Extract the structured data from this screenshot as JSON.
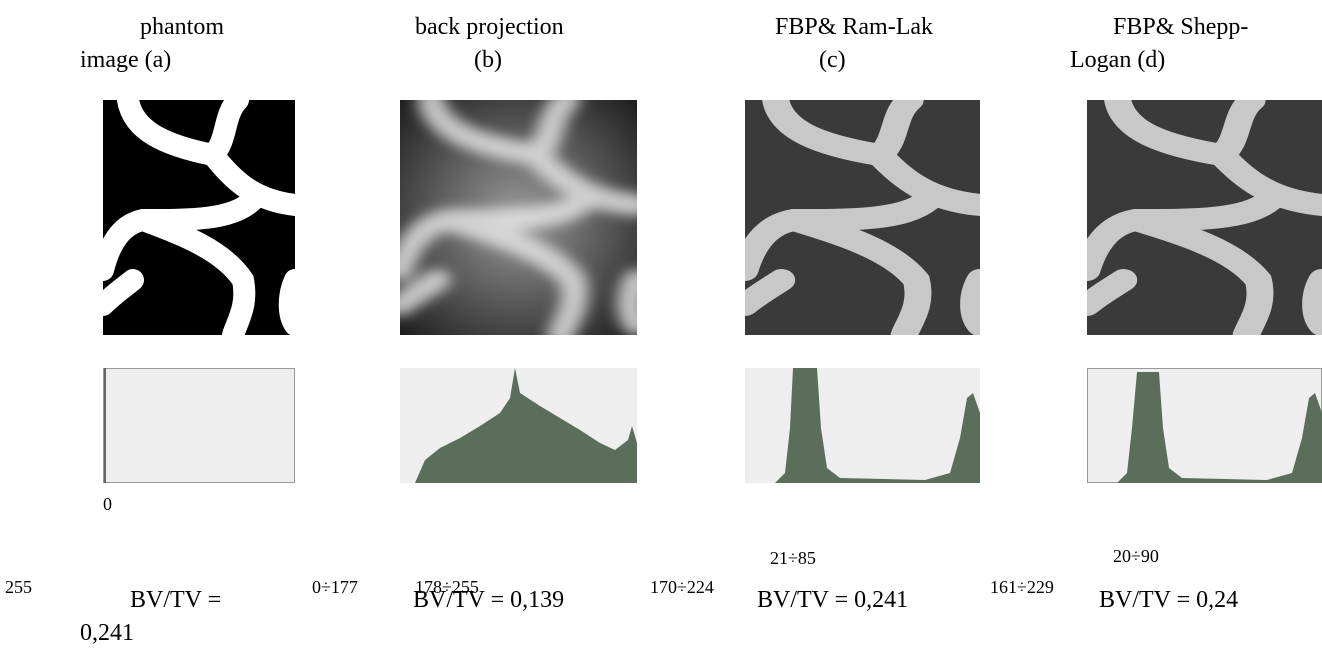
{
  "columns": [
    {
      "title": [
        "phantom",
        "image (a)"
      ],
      "ranges": [
        "0",
        "255"
      ],
      "bvtv": [
        "BV/TV =",
        "0,241"
      ]
    },
    {
      "title": [
        "back projection",
        "(b)"
      ],
      "ranges": [
        "0÷177",
        "178÷255"
      ],
      "bvtv": [
        "BV/TV = 0,139"
      ]
    },
    {
      "title": [
        "FBP& Ram-Lak",
        "(c)"
      ],
      "ranges": [
        "21÷85",
        "170÷224"
      ],
      "bvtv": [
        "BV/TV = 0,241"
      ]
    },
    {
      "title": [
        "FBP& Shepp-",
        "Logan (d)"
      ],
      "ranges": [
        "20÷90",
        "161÷229"
      ],
      "bvtv": [
        "BV/TV = 0,24"
      ]
    }
  ]
}
